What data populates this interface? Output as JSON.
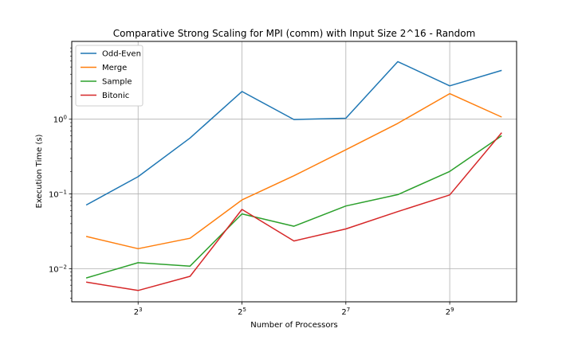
{
  "chart_data": {
    "type": "line",
    "title": "Comparative Strong Scaling for MPI (comm) with Input Size 2^16 - Random",
    "xlabel": "Number of Processors",
    "ylabel": "Execution Time (s)",
    "xscale": "log2",
    "yscale": "log10",
    "x": [
      4,
      8,
      16,
      32,
      64,
      128,
      256,
      512,
      1024
    ],
    "xlim": [
      3.3,
      1250
    ],
    "ylim": [
      0.0036,
      11
    ],
    "xticks": [
      {
        "value": 8,
        "base": "2",
        "exp": "3"
      },
      {
        "value": 32,
        "base": "2",
        "exp": "5"
      },
      {
        "value": 128,
        "base": "2",
        "exp": "7"
      },
      {
        "value": 512,
        "base": "2",
        "exp": "9"
      }
    ],
    "yticks": [
      {
        "value": 0.01,
        "base": "10",
        "exp": "−2"
      },
      {
        "value": 0.1,
        "base": "10",
        "exp": "−1"
      },
      {
        "value": 1,
        "base": "10",
        "exp": "0"
      }
    ],
    "grid": true,
    "legend": "upper left",
    "series": [
      {
        "name": "Odd-Even",
        "color": "#1f77b4",
        "values": [
          0.071,
          0.17,
          0.56,
          2.35,
          0.99,
          1.03,
          5.9,
          2.8,
          4.5
        ]
      },
      {
        "name": "Merge",
        "color": "#ff7f0e",
        "values": [
          0.027,
          0.0185,
          0.0255,
          0.083,
          0.175,
          0.39,
          0.88,
          2.2,
          1.07
        ]
      },
      {
        "name": "Sample",
        "color": "#2ca02c",
        "values": [
          0.0075,
          0.012,
          0.0108,
          0.054,
          0.037,
          0.069,
          0.098,
          0.2,
          0.6
        ]
      },
      {
        "name": "Bitonic",
        "color": "#d62728",
        "values": [
          0.0066,
          0.0051,
          0.0079,
          0.062,
          0.0235,
          0.034,
          0.058,
          0.097,
          0.66
        ]
      }
    ]
  }
}
